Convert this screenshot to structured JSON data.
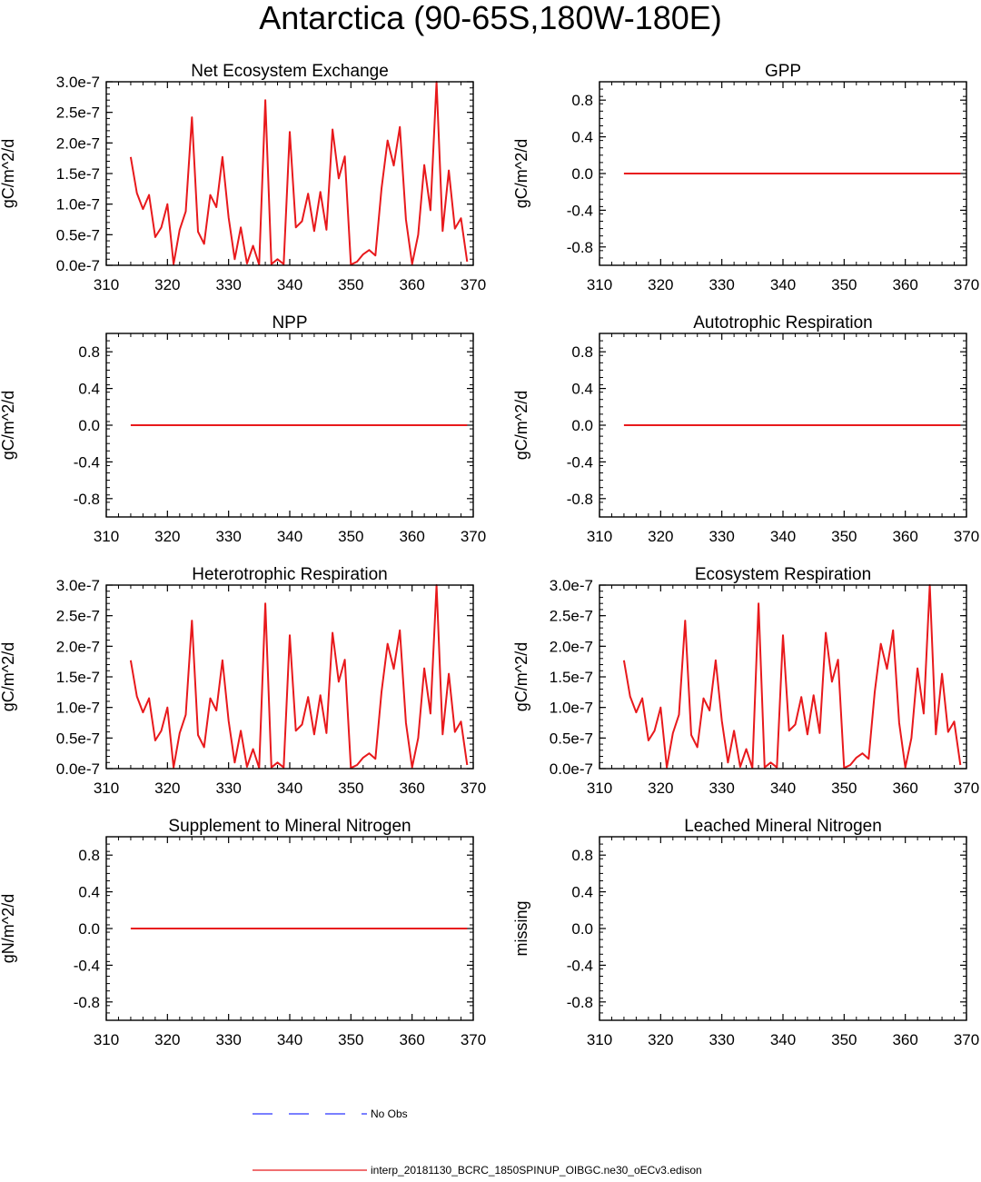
{
  "figure": {
    "title": "Antarctica (90-65S,180W-180E)"
  },
  "colors": {
    "model_line": "#e8191c",
    "obs_line": "#2b35ff"
  },
  "legend": {
    "position": "bottom-center",
    "items": [
      {
        "label": "No Obs",
        "style": "dashed",
        "color": "#2b35ff"
      },
      {
        "label": "interp_20181130_BCRC_1850SPINUP_OIBGC.ne30_oECv3.edison",
        "style": "solid",
        "color": "#e8191c"
      }
    ]
  },
  "chart_data": [
    {
      "type": "line",
      "title": "Net Ecosystem Exchange",
      "ylabel": "gC/m^2/d",
      "xlim": [
        310,
        370
      ],
      "ylim": [
        0,
        3e-07
      ],
      "xticks": [
        "310",
        "320",
        "330",
        "340",
        "350",
        "360",
        "370"
      ],
      "yticks": [
        0,
        5e-08,
        1e-07,
        1.5e-07,
        2e-07,
        2.5e-07,
        3e-07
      ],
      "ytick_labels": [
        "0.0e-7",
        "0.5e-7",
        "1.0e-7",
        "1.5e-7",
        "2.0e-7",
        "2.5e-7",
        "3.0e-7"
      ],
      "x": [
        314,
        315,
        316,
        317,
        318,
        319,
        320,
        321,
        322,
        323,
        324,
        325,
        326,
        327,
        328,
        329,
        330,
        331,
        332,
        333,
        334,
        335,
        336,
        337,
        338,
        339,
        340,
        341,
        342,
        343,
        344,
        345,
        346,
        347,
        348,
        349,
        350,
        351,
        352,
        353,
        354,
        355,
        356,
        357,
        358,
        359,
        360,
        361,
        362,
        363,
        364,
        365,
        366,
        367,
        368,
        369
      ],
      "series": [
        {
          "values": [
            1.77e-07,
            1.18e-07,
            9.2e-08,
            1.15e-07,
            4.6e-08,
            6.2e-08,
            1e-07,
            2e-09,
            5.8e-08,
            8.8e-08,
            2.42e-07,
            5.5e-08,
            3.5e-08,
            1.15e-07,
            9.5e-08,
            1.77e-07,
            7.8e-08,
            1e-08,
            6.2e-08,
            3e-09,
            3.2e-08,
            1e-09,
            2.7e-07,
            2e-09,
            1e-08,
            2e-09,
            2.18e-07,
            6.2e-08,
            7.2e-08,
            1.17e-07,
            5.6e-08,
            1.2e-07,
            5.8e-08,
            2.22e-07,
            1.42e-07,
            1.78e-07,
            1e-09,
            6e-09,
            1.8e-08,
            2.5e-08,
            1.6e-08,
            1.25e-07,
            2.04e-07,
            1.63e-07,
            2.26e-07,
            7.5e-08,
            2e-09,
            5e-08,
            1.64e-07,
            9e-08,
            3e-07,
            5.6e-08,
            1.55e-07,
            6e-08,
            7.7e-08,
            6e-09
          ]
        }
      ]
    },
    {
      "type": "line",
      "title": "GPP",
      "ylabel": "gC/m^2/d",
      "xlim": [
        310,
        370
      ],
      "ylim": [
        -1,
        1
      ],
      "xticks": [
        "310",
        "320",
        "330",
        "340",
        "350",
        "360",
        "370"
      ],
      "yticks": [
        -0.8,
        -0.4,
        0,
        0.4,
        0.8
      ],
      "ytick_labels": [
        "-0.8",
        "-0.4",
        "0.0",
        "0.4",
        "0.8"
      ],
      "x": [
        314,
        369
      ],
      "series": [
        {
          "values": [
            0,
            0
          ]
        }
      ]
    },
    {
      "type": "line",
      "title": "NPP",
      "ylabel": "gC/m^2/d",
      "xlim": [
        310,
        370
      ],
      "ylim": [
        -1,
        1
      ],
      "xticks": [
        "310",
        "320",
        "330",
        "340",
        "350",
        "360",
        "370"
      ],
      "yticks": [
        -0.8,
        -0.4,
        0,
        0.4,
        0.8
      ],
      "ytick_labels": [
        "-0.8",
        "-0.4",
        "0.0",
        "0.4",
        "0.8"
      ],
      "x": [
        314,
        369
      ],
      "series": [
        {
          "values": [
            0,
            0
          ]
        }
      ]
    },
    {
      "type": "line",
      "title": "Autotrophic Respiration",
      "ylabel": "gC/m^2/d",
      "xlim": [
        310,
        370
      ],
      "ylim": [
        -1,
        1
      ],
      "xticks": [
        "310",
        "320",
        "330",
        "340",
        "350",
        "360",
        "370"
      ],
      "yticks": [
        -0.8,
        -0.4,
        0,
        0.4,
        0.8
      ],
      "ytick_labels": [
        "-0.8",
        "-0.4",
        "0.0",
        "0.4",
        "0.8"
      ],
      "x": [
        314,
        369
      ],
      "series": [
        {
          "values": [
            0,
            0
          ]
        }
      ]
    },
    {
      "type": "line",
      "title": "Heterotrophic Respiration",
      "ylabel": "gC/m^2/d",
      "xlim": [
        310,
        370
      ],
      "ylim": [
        0,
        3e-07
      ],
      "xticks": [
        "310",
        "320",
        "330",
        "340",
        "350",
        "360",
        "370"
      ],
      "yticks": [
        0,
        5e-08,
        1e-07,
        1.5e-07,
        2e-07,
        2.5e-07,
        3e-07
      ],
      "ytick_labels": [
        "0.0e-7",
        "0.5e-7",
        "1.0e-7",
        "1.5e-7",
        "2.0e-7",
        "2.5e-7",
        "3.0e-7"
      ],
      "x": [
        314,
        315,
        316,
        317,
        318,
        319,
        320,
        321,
        322,
        323,
        324,
        325,
        326,
        327,
        328,
        329,
        330,
        331,
        332,
        333,
        334,
        335,
        336,
        337,
        338,
        339,
        340,
        341,
        342,
        343,
        344,
        345,
        346,
        347,
        348,
        349,
        350,
        351,
        352,
        353,
        354,
        355,
        356,
        357,
        358,
        359,
        360,
        361,
        362,
        363,
        364,
        365,
        366,
        367,
        368,
        369
      ],
      "series": [
        {
          "values": [
            1.77e-07,
            1.18e-07,
            9.2e-08,
            1.15e-07,
            4.6e-08,
            6.2e-08,
            1e-07,
            2e-09,
            5.8e-08,
            8.8e-08,
            2.42e-07,
            5.5e-08,
            3.5e-08,
            1.15e-07,
            9.5e-08,
            1.77e-07,
            7.8e-08,
            1e-08,
            6.2e-08,
            3e-09,
            3.2e-08,
            1e-09,
            2.7e-07,
            2e-09,
            1e-08,
            2e-09,
            2.18e-07,
            6.2e-08,
            7.2e-08,
            1.17e-07,
            5.6e-08,
            1.2e-07,
            5.8e-08,
            2.22e-07,
            1.42e-07,
            1.78e-07,
            1e-09,
            6e-09,
            1.8e-08,
            2.5e-08,
            1.6e-08,
            1.25e-07,
            2.04e-07,
            1.63e-07,
            2.26e-07,
            7.5e-08,
            2e-09,
            5e-08,
            1.64e-07,
            9e-08,
            3e-07,
            5.6e-08,
            1.55e-07,
            6e-08,
            7.7e-08,
            6e-09
          ]
        }
      ]
    },
    {
      "type": "line",
      "title": "Ecosystem Respiration",
      "ylabel": "gC/m^2/d",
      "xlim": [
        310,
        370
      ],
      "ylim": [
        0,
        3e-07
      ],
      "xticks": [
        "310",
        "320",
        "330",
        "340",
        "350",
        "360",
        "370"
      ],
      "yticks": [
        0,
        5e-08,
        1e-07,
        1.5e-07,
        2e-07,
        2.5e-07,
        3e-07
      ],
      "ytick_labels": [
        "0.0e-7",
        "0.5e-7",
        "1.0e-7",
        "1.5e-7",
        "2.0e-7",
        "2.5e-7",
        "3.0e-7"
      ],
      "x": [
        314,
        315,
        316,
        317,
        318,
        319,
        320,
        321,
        322,
        323,
        324,
        325,
        326,
        327,
        328,
        329,
        330,
        331,
        332,
        333,
        334,
        335,
        336,
        337,
        338,
        339,
        340,
        341,
        342,
        343,
        344,
        345,
        346,
        347,
        348,
        349,
        350,
        351,
        352,
        353,
        354,
        355,
        356,
        357,
        358,
        359,
        360,
        361,
        362,
        363,
        364,
        365,
        366,
        367,
        368,
        369
      ],
      "series": [
        {
          "values": [
            1.77e-07,
            1.18e-07,
            9.2e-08,
            1.15e-07,
            4.6e-08,
            6.2e-08,
            1e-07,
            2e-09,
            5.8e-08,
            8.8e-08,
            2.42e-07,
            5.5e-08,
            3.5e-08,
            1.15e-07,
            9.5e-08,
            1.77e-07,
            7.8e-08,
            1e-08,
            6.2e-08,
            3e-09,
            3.2e-08,
            1e-09,
            2.7e-07,
            2e-09,
            1e-08,
            2e-09,
            2.18e-07,
            6.2e-08,
            7.2e-08,
            1.17e-07,
            5.6e-08,
            1.2e-07,
            5.8e-08,
            2.22e-07,
            1.42e-07,
            1.78e-07,
            1e-09,
            6e-09,
            1.8e-08,
            2.5e-08,
            1.6e-08,
            1.25e-07,
            2.04e-07,
            1.63e-07,
            2.26e-07,
            7.5e-08,
            2e-09,
            5e-08,
            1.64e-07,
            9e-08,
            3e-07,
            5.6e-08,
            1.55e-07,
            6e-08,
            7.7e-08,
            6e-09
          ]
        }
      ]
    },
    {
      "type": "line",
      "title": "Supplement to Mineral Nitrogen",
      "ylabel": "gN/m^2/d",
      "xlim": [
        310,
        370
      ],
      "ylim": [
        -1,
        1
      ],
      "xticks": [
        "310",
        "320",
        "330",
        "340",
        "350",
        "360",
        "370"
      ],
      "yticks": [
        -0.8,
        -0.4,
        0,
        0.4,
        0.8
      ],
      "ytick_labels": [
        "-0.8",
        "-0.4",
        "0.0",
        "0.4",
        "0.8"
      ],
      "x": [
        314,
        369
      ],
      "series": [
        {
          "values": [
            0,
            0
          ]
        }
      ]
    },
    {
      "type": "line",
      "title": "Leached Mineral Nitrogen",
      "ylabel": "missing",
      "xlim": [
        310,
        370
      ],
      "ylim": [
        -1,
        1
      ],
      "xticks": [
        "310",
        "320",
        "330",
        "340",
        "350",
        "360",
        "370"
      ],
      "yticks": [
        -0.8,
        -0.4,
        0,
        0.4,
        0.8
      ],
      "ytick_labels": [
        "-0.8",
        "-0.4",
        "0.0",
        "0.4",
        "0.8"
      ],
      "x": [],
      "series": [
        {
          "values": []
        }
      ]
    }
  ]
}
